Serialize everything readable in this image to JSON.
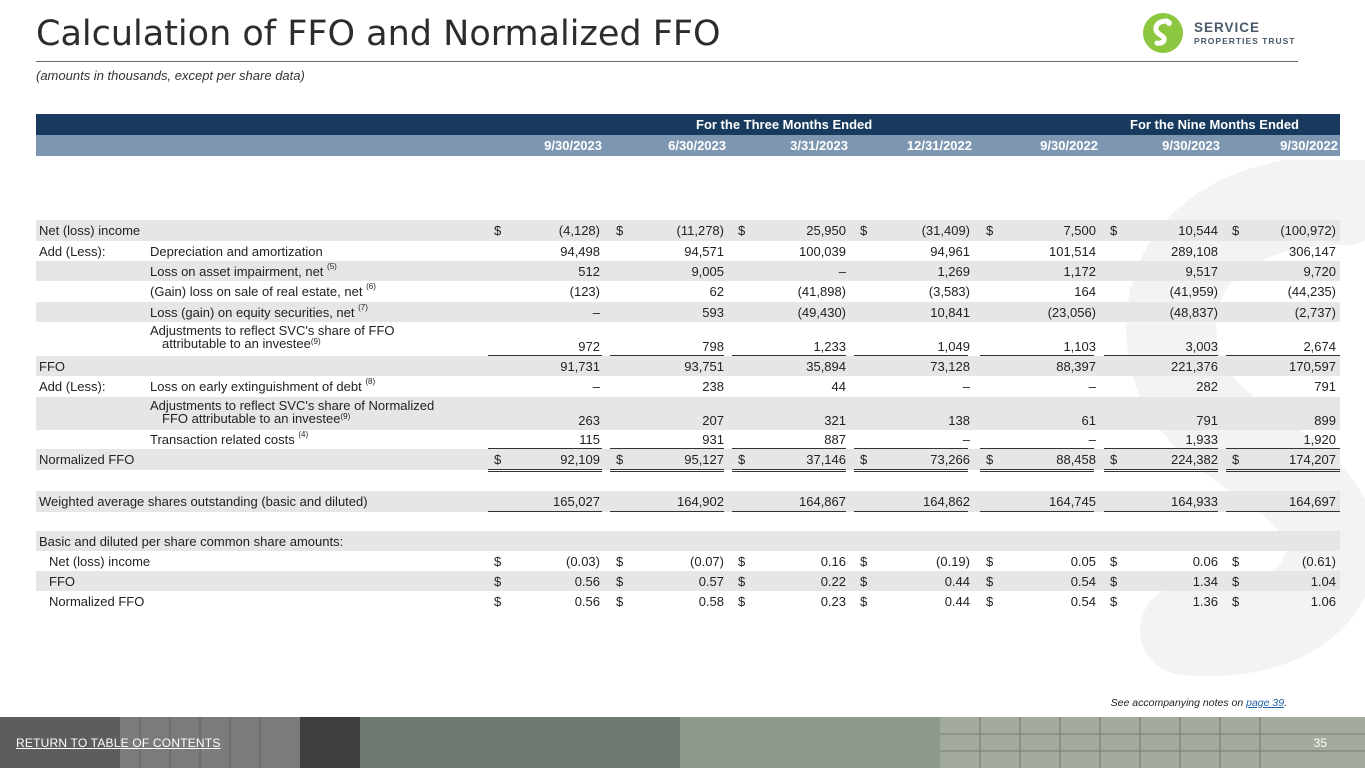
{
  "title": "Calculation of FFO and Normalized FFO",
  "subtitle": "(amounts in thousands, except per share data)",
  "logo": {
    "line1": "SERVICE",
    "line2": "PROPERTIES TRUST",
    "color": "#8dc63f"
  },
  "header": {
    "group1": "For the Three Months Ended",
    "group2": "For the Nine Months Ended",
    "columns": [
      "9/30/2023",
      "6/30/2023",
      "3/31/2023",
      "12/31/2022",
      "9/30/2022",
      "9/30/2023",
      "9/30/2022"
    ]
  },
  "rows": {
    "net_income": {
      "label": "Net (loss) income",
      "values": [
        "(4,128)",
        "(11,278)",
        "25,950",
        "(31,409)",
        "7,500",
        "10,544",
        "(100,972)"
      ]
    },
    "depreciation": {
      "group": "Add (Less):",
      "label": "Depreciation and amortization",
      "values": [
        "94,498",
        "94,571",
        "100,039",
        "94,961",
        "101,514",
        "289,108",
        "306,147"
      ]
    },
    "impairment": {
      "label": "Loss on asset impairment, net",
      "note": "(5)",
      "values": [
        "512",
        "9,005",
        "–",
        "1,269",
        "1,172",
        "9,517",
        "9,720"
      ]
    },
    "gain_sale": {
      "label": "(Gain) loss on sale of real estate, net",
      "note": "(6)",
      "values": [
        "(123)",
        "62",
        "(41,898)",
        "(3,583)",
        "164",
        "(41,959)",
        "(44,235)"
      ]
    },
    "equity_sec": {
      "label": "Loss (gain) on equity securities, net",
      "note": "(7)",
      "values": [
        "–",
        "593",
        "(49,430)",
        "10,841",
        "(23,056)",
        "(48,837)",
        "(2,737)"
      ]
    },
    "adj_ffo": {
      "label1": "Adjustments to reflect SVC's share of FFO",
      "label2": "attributable to an investee",
      "note": "(9)",
      "values": [
        "972",
        "798",
        "1,233",
        "1,049",
        "1,103",
        "3,003",
        "2,674"
      ]
    },
    "ffo": {
      "label": "FFO",
      "values": [
        "91,731",
        "93,751",
        "35,894",
        "73,128",
        "88,397",
        "221,376",
        "170,597"
      ]
    },
    "early_ext": {
      "group": "Add (Less):",
      "label": "Loss on early extinguishment of debt",
      "note": "(8)",
      "values": [
        "–",
        "238",
        "44",
        "–",
        "–",
        "282",
        "791"
      ]
    },
    "adj_nffo": {
      "label1": "Adjustments to reflect SVC's share of Normalized",
      "label2": "FFO attributable to an investee",
      "note": "(9)",
      "values": [
        "263",
        "207",
        "321",
        "138",
        "61",
        "791",
        "899"
      ]
    },
    "transaction": {
      "label": "Transaction related costs",
      "note": "(4)",
      "values": [
        "115",
        "931",
        "887",
        "–",
        "–",
        "1,933",
        "1,920"
      ]
    },
    "normalized_ffo": {
      "label": "Normalized FFO",
      "values": [
        "92,109",
        "95,127",
        "37,146",
        "73,266",
        "88,458",
        "224,382",
        "174,207"
      ]
    },
    "shares": {
      "label": "Weighted average shares outstanding (basic and diluted)",
      "values": [
        "165,027",
        "164,902",
        "164,867",
        "164,862",
        "164,745",
        "164,933",
        "164,697"
      ]
    },
    "per_share_hdr": {
      "label": "Basic and diluted per share common share amounts:"
    },
    "ps_net_income": {
      "label": "Net (loss) income",
      "values": [
        "(0.03)",
        "(0.07)",
        "0.16",
        "(0.19)",
        "0.05",
        "0.06",
        "(0.61)"
      ]
    },
    "ps_ffo": {
      "label": "FFO",
      "values": [
        "0.56",
        "0.57",
        "0.22",
        "0.44",
        "0.54",
        "1.34",
        "1.04"
      ]
    },
    "ps_nffo": {
      "label": "Normalized FFO",
      "values": [
        "0.56",
        "0.58",
        "0.23",
        "0.44",
        "0.54",
        "1.36",
        "1.06"
      ]
    }
  },
  "currency_symbol": "$",
  "notes": {
    "text": "See accompanying notes on ",
    "link": "page 39",
    "suffix": "."
  },
  "footer": {
    "toc_link": "RETURN TO TABLE OF CONTENTS",
    "page_number": "35"
  }
}
